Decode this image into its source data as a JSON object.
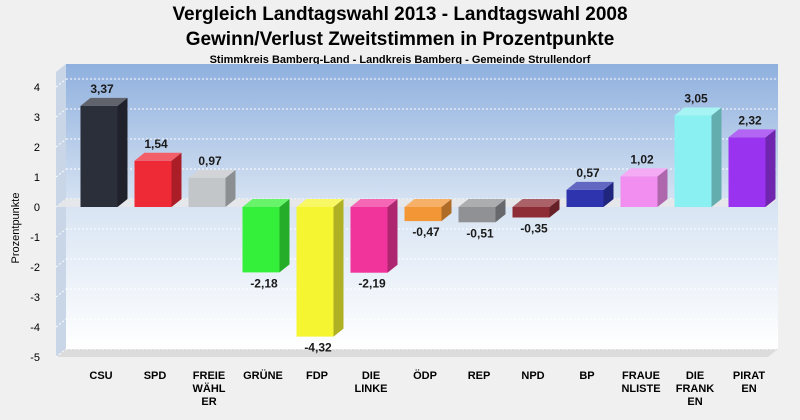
{
  "chart_data": {
    "type": "bar",
    "title": "Vergleich Landtagswahl 2013 - Landtagswahl 2008",
    "subtitle_main": "Gewinn/Verlust Zweitstimmen in Prozentpunkte",
    "subtitle": "Stimmkreis Bamberg-Land - Landkreis Bamberg - Gemeinde Strullendorf",
    "xlabel": "",
    "ylabel": "Prozentpunkte",
    "ylim": [
      -5,
      4.5
    ],
    "yticks": [
      4,
      3,
      2,
      1,
      0,
      -1,
      -2,
      -3,
      -4,
      -5
    ],
    "grid": true,
    "categories": [
      "CSU",
      "SPD",
      "FREIE WÄHL ER",
      "GRÜNE",
      "FDP",
      "DIE LINKE",
      "ÖDP",
      "REP",
      "NPD",
      "BP",
      "FRAUE NLISTE",
      "DIE FRANK EN",
      "PIRAT EN"
    ],
    "category_lines": [
      [
        "CSU"
      ],
      [
        "SPD"
      ],
      [
        "FREIE",
        "WÄHL",
        "ER"
      ],
      [
        "GRÜNE"
      ],
      [
        "FDP"
      ],
      [
        "DIE",
        "LINKE"
      ],
      [
        "ÖDP"
      ],
      [
        "REP"
      ],
      [
        "NPD"
      ],
      [
        "BP"
      ],
      [
        "FRAUE",
        "NLISTE"
      ],
      [
        "DIE",
        "FRANK",
        "EN"
      ],
      [
        "PIRAT",
        "EN"
      ]
    ],
    "values": [
      3.37,
      1.54,
      0.97,
      -2.18,
      -4.32,
      -2.19,
      -0.47,
      -0.51,
      -0.35,
      0.57,
      1.02,
      3.05,
      2.32
    ],
    "value_labels": [
      "3,37",
      "1,54",
      "0,97",
      "-2,18",
      "-4,32",
      "-2,19",
      "-0,47",
      "-0,51",
      "-0,35",
      "0,57",
      "1,02",
      "3,05",
      "2,32"
    ],
    "colors": [
      "#2b2f3a",
      "#ee2a36",
      "#c3c6c9",
      "#34f03a",
      "#f5f532",
      "#f1349b",
      "#f39636",
      "#8f9194",
      "#8e2d36",
      "#2d34ad",
      "#f18ef0",
      "#8af0f1",
      "#9a33f0"
    ]
  }
}
